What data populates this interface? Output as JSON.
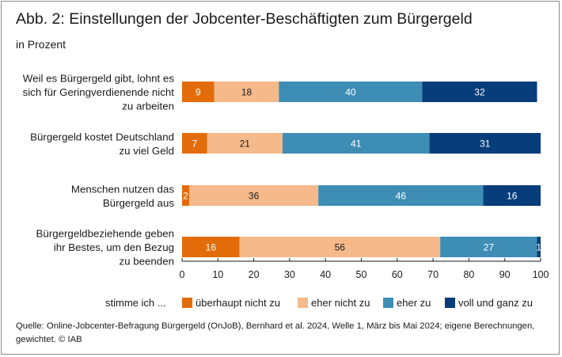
{
  "title": "Abb. 2: Einstellungen der Jobcenter-Beschäftigten zum Bürgergeld",
  "subtitle": "in Prozent",
  "source": "Quelle: Online-Jobcenter-Befragung Bürgergeld (OnJoB), Bernhard et al. 2024, Welle 1, März bis Mai 2024; eigene Berechnungen, gewichtet. © IAB",
  "legend_prefix": "stimme ich ...",
  "chart_data": {
    "type": "bar",
    "orientation": "horizontal",
    "stacked": true,
    "categories": [
      [
        "Weil es Bürgergeld gibt, lohnt es",
        "sich für Geringverdienende nicht",
        "zu arbeiten"
      ],
      [
        "Bürgergeld kostet Deutschland",
        "zu viel Geld"
      ],
      [
        "Menschen nutzen das",
        "Bürgergeld aus"
      ],
      [
        "Bürgergeldbeziehende geben",
        "ihr Bestes, um den Bezug",
        "zu beenden"
      ]
    ],
    "series": [
      {
        "name": "überhaupt nicht zu",
        "color": "#e36c0a",
        "values": [
          9,
          7,
          2,
          16
        ]
      },
      {
        "name": "eher nicht zu",
        "color": "#f5b98a",
        "values": [
          18,
          21,
          36,
          56
        ]
      },
      {
        "name": "eher zu",
        "color": "#3e8db5",
        "values": [
          40,
          41,
          46,
          27
        ]
      },
      {
        "name": "voll und ganz zu",
        "color": "#063d7a",
        "values": [
          32,
          31,
          16,
          1
        ]
      }
    ],
    "xlim": [
      0,
      100
    ],
    "xticks": [
      0,
      10,
      20,
      30,
      40,
      50,
      60,
      70,
      80,
      90,
      100
    ],
    "label_colors": [
      "#ffffff",
      "#1a1a1a",
      "#ffffff",
      "#ffffff"
    ],
    "grid": false,
    "legend_position": "bottom"
  }
}
